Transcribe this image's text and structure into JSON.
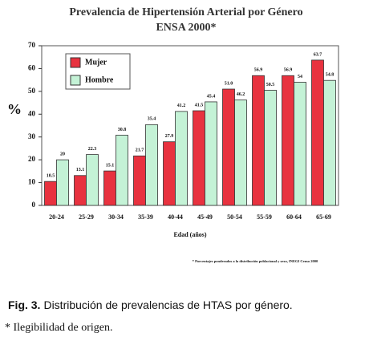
{
  "chart_data": {
    "type": "bar",
    "title": "Prevalencia de Hipertensión Arterial por Género",
    "subtitle": "ENSA 2000*",
    "y_label": "%",
    "x_label": "Edad (años)",
    "footnote": "* Porcentajes ponderados a la distribución poblacional y sexo, INEGI Censo 2000",
    "categories": [
      "20-24",
      "25-29",
      "30-34",
      "35-39",
      "40-44",
      "45-49",
      "50-54",
      "55-59",
      "60-64",
      "65-69"
    ],
    "series": [
      {
        "name": "Mujer",
        "color": "#e8323f",
        "values": [
          10.5,
          13.1,
          15.1,
          21.7,
          27.9,
          41.5,
          51.0,
          56.9,
          56.9,
          63.7
        ],
        "value_labels": [
          "10.5",
          "13.1",
          "15.1",
          "21.7",
          "27.9",
          "41.5",
          "51.0",
          "56.9",
          "56.9",
          "63.7"
        ]
      },
      {
        "name": "Hombre",
        "color": "#c4f2d6",
        "values": [
          20,
          22.3,
          30.8,
          35.4,
          41.2,
          45.4,
          46.2,
          50.5,
          54,
          54.8
        ],
        "value_labels": [
          "20",
          "22.3",
          "30.8",
          "35.4",
          "41.2",
          "45.4",
          "46.2",
          "50.5",
          "54",
          "54.8"
        ]
      }
    ],
    "ylim": [
      0,
      70
    ],
    "yticks": [
      0,
      10,
      20,
      30,
      40,
      50,
      60,
      70
    ],
    "legend": "upper left"
  },
  "caption": {
    "label": "Fig. 3.",
    "text": "Distribución de prevalencias de HTAS por género.",
    "note": "* Ilegibilidad de origen."
  }
}
